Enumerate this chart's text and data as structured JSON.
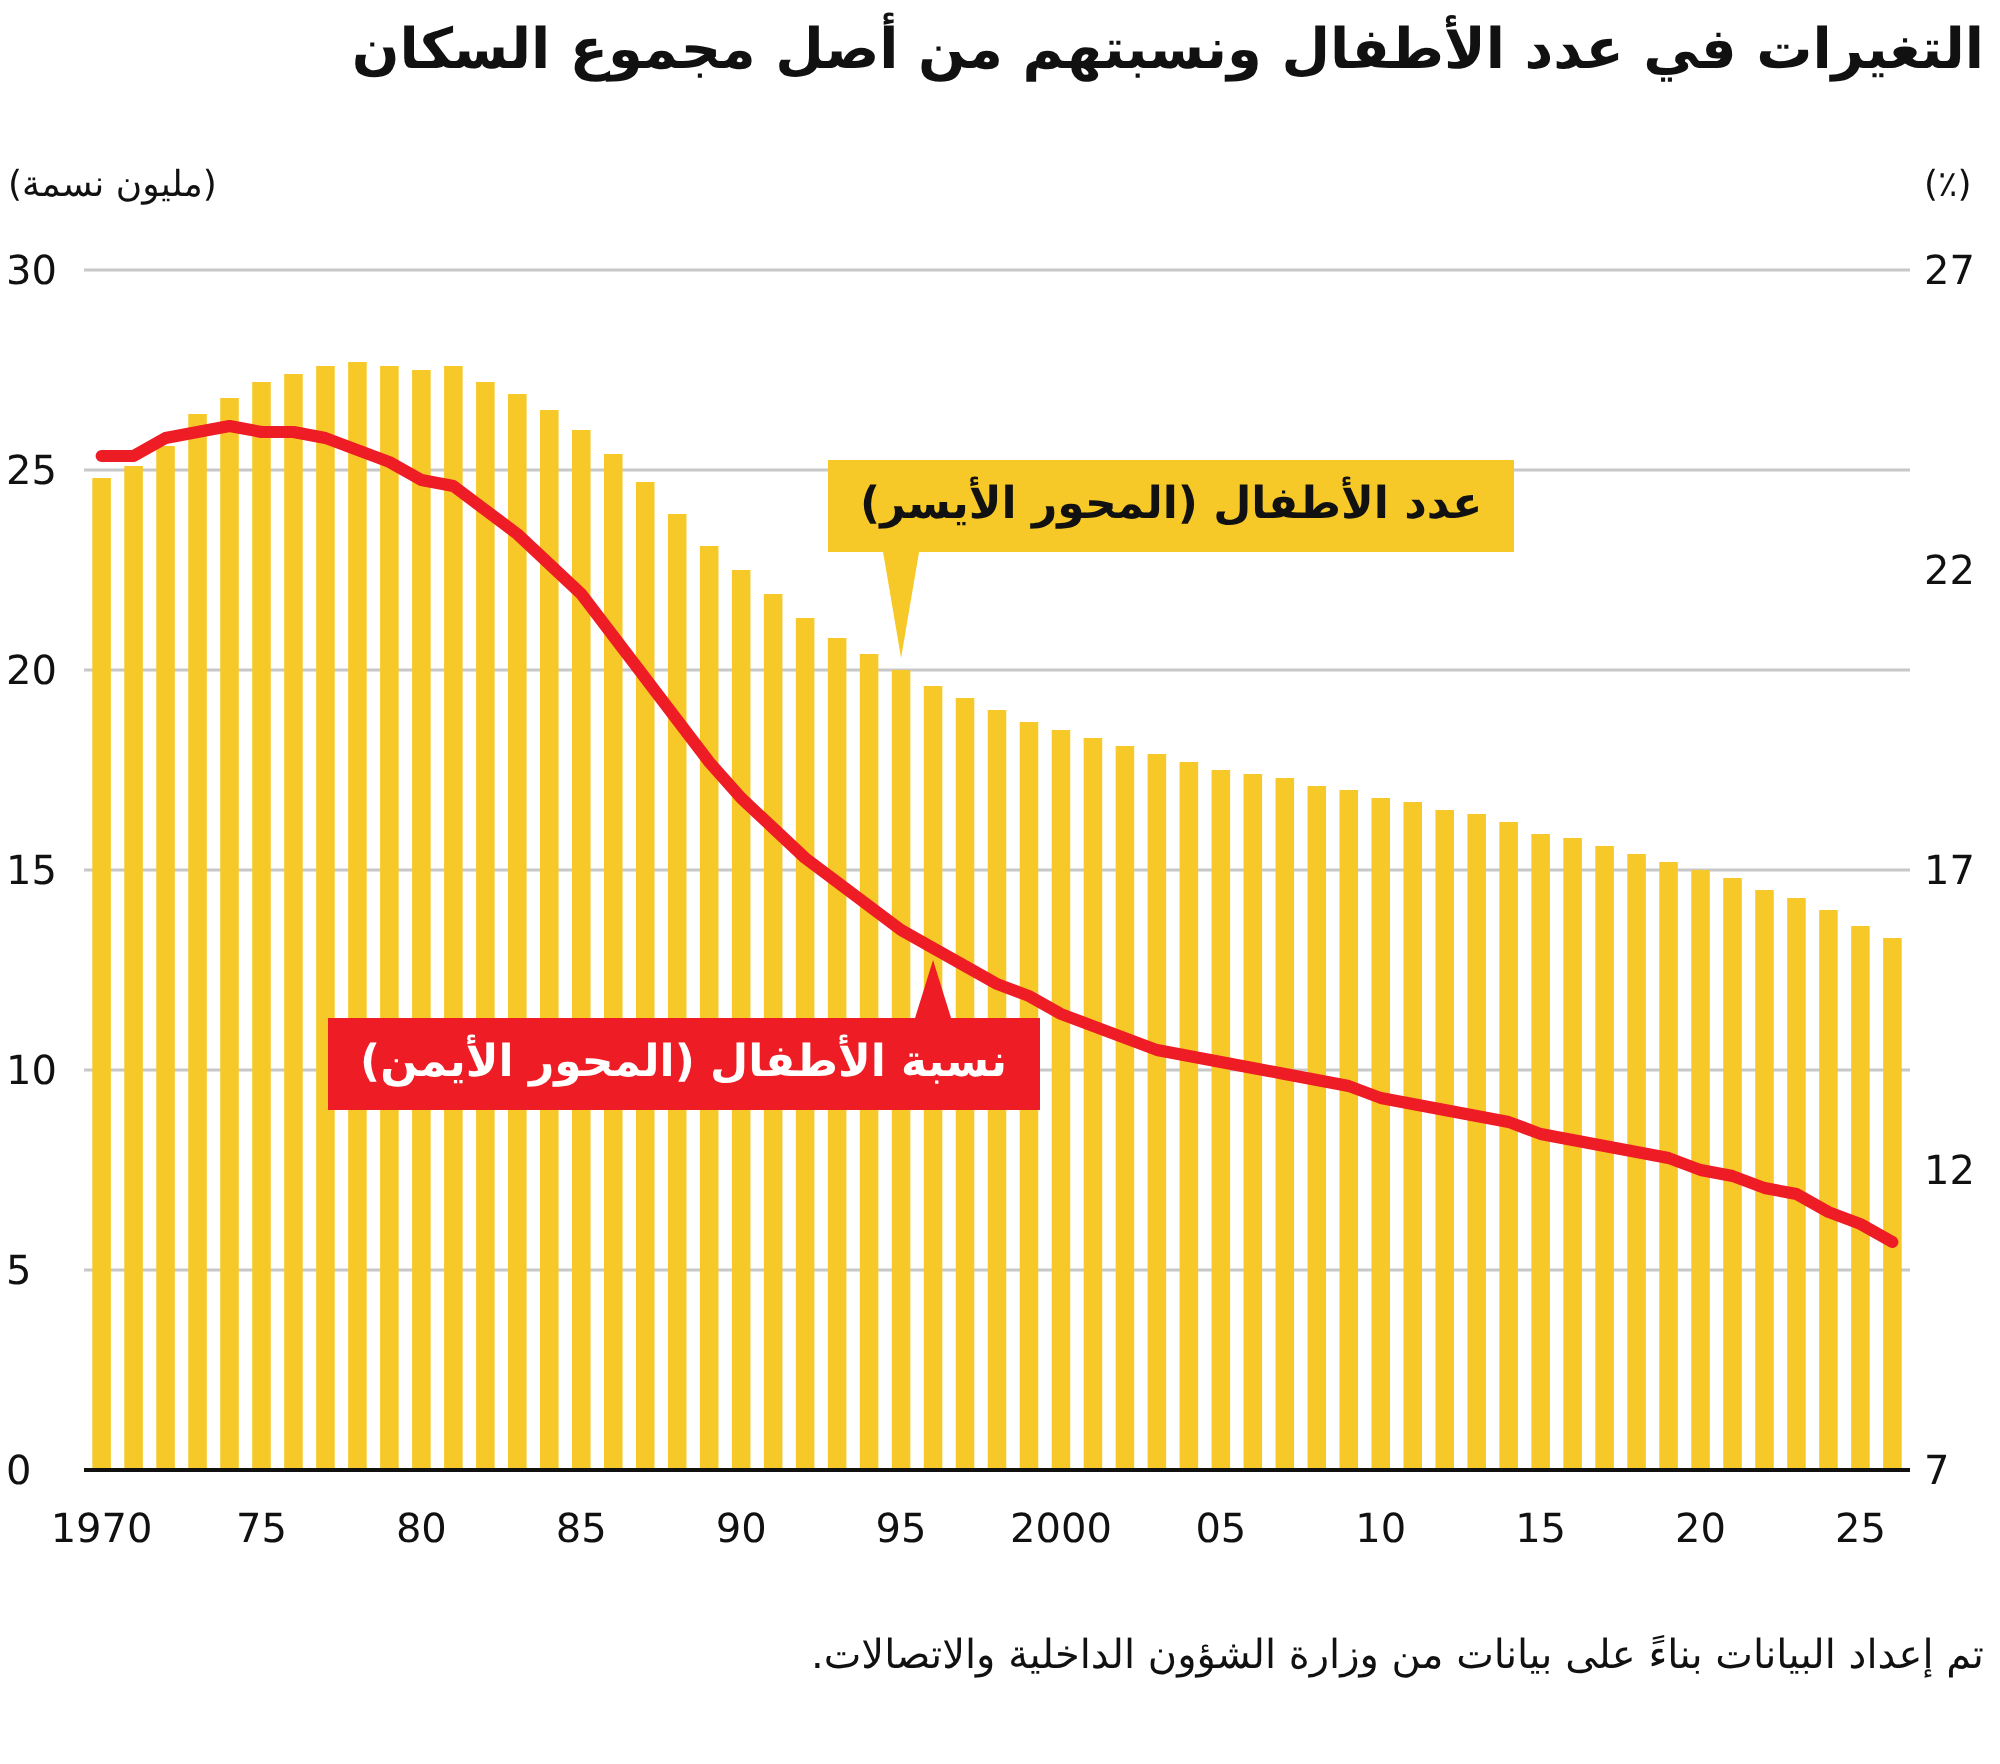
{
  "chart_data": {
    "type": "bar",
    "title": "التغيرات في عدد الأطفال ونسبتهم من أصل مجموع السكان",
    "ylabel": "(مليون نسمة)",
    "y2label": "(٪)",
    "annotations": [
      "تم إعداد البيانات بناءً على بيانات من وزارة الشؤون الداخلية والاتصالات."
    ],
    "x": [
      1970,
      1971,
      1972,
      1973,
      1974,
      1975,
      1976,
      1977,
      1978,
      1979,
      1980,
      1981,
      1982,
      1983,
      1984,
      1985,
      1986,
      1987,
      1988,
      1989,
      1990,
      1991,
      1992,
      1993,
      1994,
      1995,
      1996,
      1997,
      1998,
      1999,
      2000,
      2001,
      2002,
      2003,
      2004,
      2005,
      2006,
      2007,
      2008,
      2009,
      2010,
      2011,
      2012,
      2013,
      2014,
      2015,
      2016,
      2017,
      2018,
      2019,
      2020,
      2021,
      2022,
      2023,
      2024,
      2025,
      2026
    ],
    "series": [
      {
        "name": "عدد الأطفال (المحور الأيسر)",
        "color": "#f7c928",
        "values": [
          24.8,
          25.1,
          25.6,
          26.4,
          26.8,
          27.2,
          27.4,
          27.6,
          27.7,
          27.6,
          27.5,
          27.6,
          27.2,
          26.9,
          26.5,
          26.0,
          25.4,
          24.7,
          23.9,
          23.1,
          22.5,
          21.9,
          21.3,
          20.8,
          20.4,
          20.0,
          19.6,
          19.3,
          19.0,
          18.7,
          18.5,
          18.3,
          18.1,
          17.9,
          17.7,
          17.5,
          17.4,
          17.3,
          17.1,
          17.0,
          16.8,
          16.7,
          16.5,
          16.4,
          16.2,
          15.9,
          15.8,
          15.6,
          15.4,
          15.2,
          15.0,
          14.8,
          14.5,
          14.3,
          14.0,
          13.6,
          13.3
        ]
      },
      {
        "name": "نسبة الأطفال (المحور الأيمن)",
        "type": "line",
        "axis": "y2",
        "color": "#ee1c25",
        "values": [
          23.9,
          23.9,
          24.2,
          24.3,
          24.4,
          24.3,
          24.3,
          24.2,
          24.0,
          23.8,
          23.5,
          23.4,
          23.0,
          22.6,
          22.1,
          21.6,
          20.9,
          20.2,
          19.5,
          18.8,
          18.2,
          17.7,
          17.2,
          16.8,
          16.4,
          16.0,
          15.7,
          15.4,
          15.1,
          14.9,
          14.6,
          14.4,
          14.2,
          14.0,
          13.9,
          13.8,
          13.7,
          13.6,
          13.5,
          13.4,
          13.2,
          13.1,
          13.0,
          12.9,
          12.8,
          12.6,
          12.5,
          12.4,
          12.3,
          12.2,
          12.0,
          11.9,
          11.7,
          11.6,
          11.3,
          11.1,
          10.8
        ]
      }
    ],
    "xlim": [
      1969.45,
      2026.55
    ],
    "xticks": [
      {
        "value": 1970,
        "label": "1970"
      },
      {
        "value": 1975,
        "label": "75"
      },
      {
        "value": 1980,
        "label": "80"
      },
      {
        "value": 1985,
        "label": "85"
      },
      {
        "value": 1990,
        "label": "90"
      },
      {
        "value": 1995,
        "label": "95"
      },
      {
        "value": 2000,
        "label": "2000"
      },
      {
        "value": 2005,
        "label": "05"
      },
      {
        "value": 2010,
        "label": "10"
      },
      {
        "value": 2015,
        "label": "15"
      },
      {
        "value": 2020,
        "label": "20"
      },
      {
        "value": 2025,
        "label": "25"
      }
    ],
    "ylim": [
      0,
      30
    ],
    "yticks": [
      0,
      5,
      10,
      15,
      20,
      25,
      30
    ],
    "y2lim": [
      7,
      27
    ],
    "y2ticks": [
      7,
      12,
      17,
      22,
      27
    ],
    "grid": "y"
  }
}
